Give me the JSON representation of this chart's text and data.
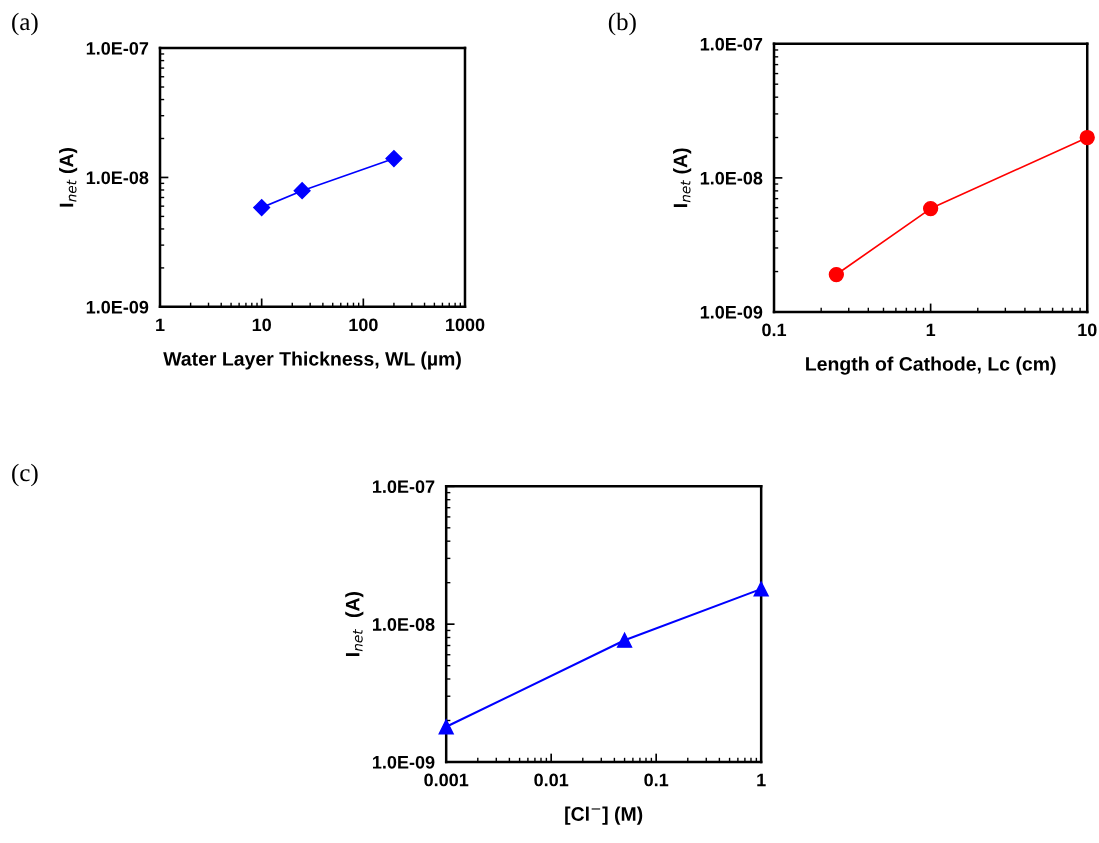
{
  "chart_data": [
    {
      "type": "line",
      "annotations": [
        "(a)"
      ],
      "xlabel": "Water Layer Thickness, WL (µm)",
      "ylabel": "I$_{net}$ (A)",
      "log": "xy",
      "grid": false,
      "marker": "diamond",
      "line_style": "solid",
      "x": [
        10,
        25,
        200
      ],
      "series": [
        {
          "color": "#0000ff",
          "values": [
            5.85e-09,
            7.9e-09,
            1.4e-08
          ]
        }
      ],
      "xlim": [
        1,
        1000
      ],
      "xticks": [
        1,
        10,
        100,
        1000
      ],
      "ylim": [
        1e-09,
        1e-07
      ],
      "yticks": [
        {
          "value": 1e-09,
          "label": "1.0E-09"
        },
        {
          "value": 1e-08,
          "label": "1.0E-08"
        },
        {
          "value": 1e-07,
          "label": "1.0E-07"
        }
      ]
    },
    {
      "type": "line",
      "annotations": [
        "(b)"
      ],
      "xlabel": "Length of Cathode, Lc (cm)",
      "ylabel": "I$_{net}$ (A)",
      "log": "xy",
      "grid": false,
      "marker": "circle",
      "line_style": "solid",
      "x": [
        0.25,
        1,
        10
      ],
      "series": [
        {
          "color": "#ff0000",
          "values": [
            1.9e-09,
            5.9e-09,
            2e-08
          ]
        }
      ],
      "xlim": [
        0.1,
        10
      ],
      "xticks": [
        0.1,
        1,
        10
      ],
      "ylim": [
        1e-09,
        1e-07
      ],
      "yticks": [
        {
          "value": 1e-09,
          "label": "1.0E-09"
        },
        {
          "value": 1e-08,
          "label": "1.0E-08"
        },
        {
          "value": 1e-07,
          "label": "1.0E-07"
        }
      ]
    },
    {
      "type": "line",
      "annotations": [
        "(c)"
      ],
      "xlabel": "[Cl$^{−}$] (M)",
      "ylabel": "I$_{net}$  (A)",
      "log": "xy",
      "grid": false,
      "marker": "triangle",
      "line_style": "solid",
      "x": [
        0.001,
        0.05,
        1
      ],
      "series": [
        {
          "color": "#0000ff",
          "values": [
            1.8e-09,
            7.65e-09,
            1.8e-08
          ]
        }
      ],
      "xlim": [
        0.001,
        1
      ],
      "xticks": [
        0.001,
        0.01,
        0.1,
        1
      ],
      "ylim": [
        1e-09,
        1e-07
      ],
      "yticks": [
        {
          "value": 1e-09,
          "label": "1.0E-09"
        },
        {
          "value": 1e-08,
          "label": "1.0E-08"
        },
        {
          "value": 1e-07,
          "label": "1.0E-07"
        }
      ]
    }
  ]
}
